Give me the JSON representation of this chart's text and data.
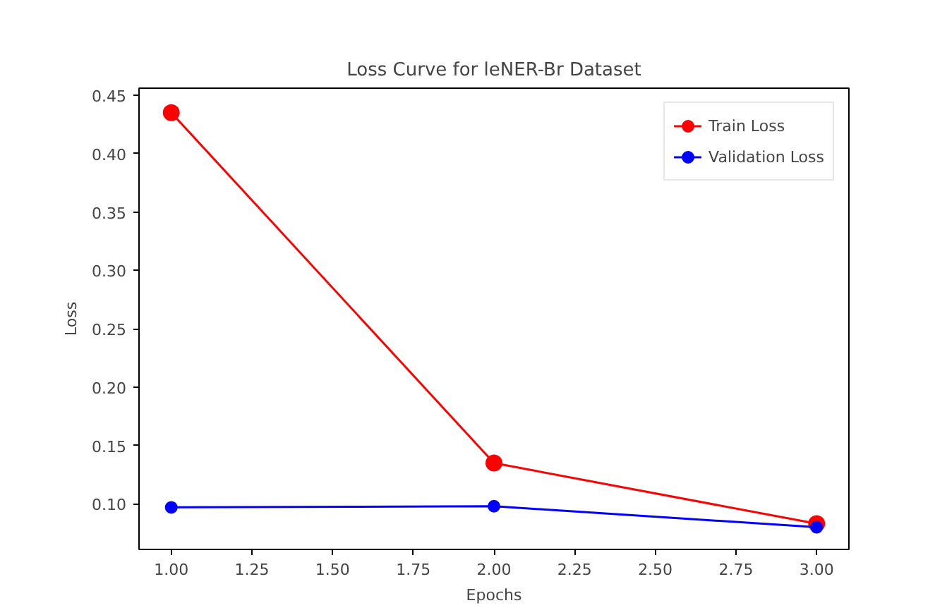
{
  "chart_data": {
    "type": "line",
    "title": "Loss Curve for leNER-Br Dataset",
    "xlabel": "Epochs",
    "ylabel": "Loss",
    "x": [
      1,
      2,
      3
    ],
    "series": [
      {
        "name": "Train Loss",
        "color": "#ff0000",
        "values": [
          0.435,
          0.135,
          0.083
        ]
      },
      {
        "name": "Validation Loss",
        "color": "#0000ff",
        "values": [
          0.097,
          0.098,
          0.08
        ]
      }
    ],
    "xlim": [
      0.9,
      3.1
    ],
    "ylim": [
      0.061,
      0.456
    ],
    "xticks": [
      {
        "value": 1,
        "label": "1.00"
      },
      {
        "value": 1.25,
        "label": "1.25"
      },
      {
        "value": 1.5,
        "label": "1.50"
      },
      {
        "value": 1.75,
        "label": "1.75"
      },
      {
        "value": 2,
        "label": "2.00"
      },
      {
        "value": 2.25,
        "label": "2.25"
      },
      {
        "value": 2.5,
        "label": "2.50"
      },
      {
        "value": 2.75,
        "label": "2.75"
      },
      {
        "value": 3,
        "label": "3.00"
      }
    ],
    "yticks": [
      {
        "value": 0.1,
        "label": "0.10"
      },
      {
        "value": 0.15,
        "label": "0.15"
      },
      {
        "value": 0.2,
        "label": "0.20"
      },
      {
        "value": 0.25,
        "label": "0.25"
      },
      {
        "value": 0.3,
        "label": "0.30"
      },
      {
        "value": 0.35,
        "label": "0.35"
      },
      {
        "value": 0.4,
        "label": "0.40"
      },
      {
        "value": 0.45,
        "label": "0.45"
      }
    ],
    "marker": "circle",
    "line_style": "solid",
    "legend": "top right",
    "grid": false
  }
}
